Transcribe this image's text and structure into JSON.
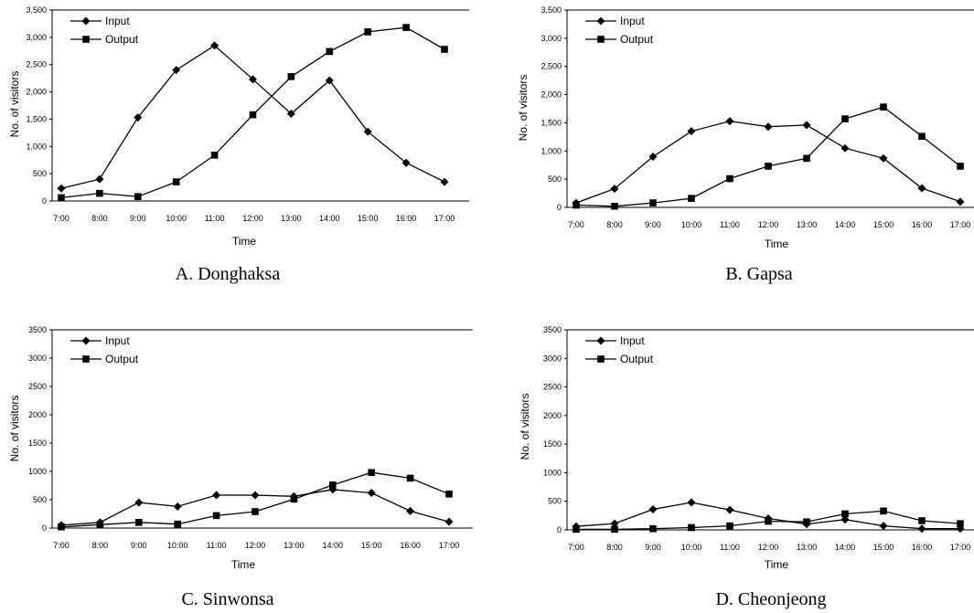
{
  "chart_data": [
    {
      "type": "line",
      "caption": "A. Donghaksa",
      "xlabel": "Time",
      "ylabel": "No. of visitors",
      "categories": [
        "7:00",
        "8:00",
        "9:00",
        "10:00",
        "11:00",
        "12:00",
        "13:00",
        "14:00",
        "15:00",
        "16:00",
        "17:00"
      ],
      "ylim": [
        0,
        3500
      ],
      "yticks": [
        "0",
        "500",
        "1,000",
        "1,500",
        "2,000",
        "2,500",
        "3,000",
        "3,500"
      ],
      "legend_position": "top-left",
      "series": [
        {
          "name": "Input",
          "marker": "diamond",
          "values": [
            230,
            400,
            1530,
            2400,
            2850,
            2230,
            1600,
            2210,
            1270,
            700,
            350
          ]
        },
        {
          "name": "Output",
          "marker": "square",
          "values": [
            60,
            140,
            80,
            350,
            840,
            1580,
            2280,
            2740,
            3100,
            3180,
            2780
          ]
        }
      ]
    },
    {
      "type": "line",
      "caption": "B. Gapsa",
      "xlabel": "Time",
      "ylabel": "No. of visitors",
      "categories": [
        "7:00",
        "8:00",
        "9:00",
        "10:00",
        "11:00",
        "12:00",
        "13:00",
        "14:00",
        "15:00",
        "16:00",
        "17:00"
      ],
      "ylim": [
        0,
        3500
      ],
      "yticks": [
        "0",
        "500",
        "1,000",
        "1,500",
        "2,000",
        "2,500",
        "3,000",
        "3,500"
      ],
      "legend_position": "top-left",
      "series": [
        {
          "name": "Input",
          "marker": "diamond",
          "values": [
            80,
            330,
            900,
            1350,
            1530,
            1430,
            1460,
            1050,
            870,
            340,
            100
          ]
        },
        {
          "name": "Output",
          "marker": "square",
          "values": [
            40,
            20,
            80,
            160,
            510,
            730,
            870,
            1570,
            1780,
            1260,
            730
          ]
        }
      ]
    },
    {
      "type": "line",
      "caption": "C. Sinwonsa",
      "xlabel": "Time",
      "ylabel": "No. of visitors",
      "categories": [
        "7:00",
        "8:00",
        "9:00",
        "10:00",
        "11:00",
        "12:00",
        "13:00",
        "14:00",
        "15:00",
        "16:00",
        "17:00"
      ],
      "ylim": [
        0,
        3500
      ],
      "yticks": [
        "0",
        "500",
        "1000",
        "1500",
        "2000",
        "2500",
        "3000",
        "3500"
      ],
      "legend_position": "top-left",
      "series": [
        {
          "name": "Input",
          "marker": "diamond",
          "values": [
            50,
            100,
            450,
            380,
            580,
            580,
            560,
            680,
            620,
            300,
            110
          ]
        },
        {
          "name": "Output",
          "marker": "square",
          "values": [
            20,
            60,
            100,
            70,
            220,
            290,
            510,
            760,
            980,
            880,
            600
          ]
        }
      ]
    },
    {
      "type": "line",
      "caption": "D. Cheonjeong",
      "xlabel": "Time",
      "ylabel": "No. of visitors",
      "categories": [
        "7:00",
        "8:00",
        "9:00",
        "10:00",
        "11:00",
        "12:00",
        "13:00",
        "14:00",
        "15:00",
        "16:00",
        "17:00"
      ],
      "ylim": [
        0,
        3500
      ],
      "yticks": [
        "0",
        "500",
        "1000",
        "1500",
        "2000",
        "2500",
        "3000",
        "3500"
      ],
      "legend_position": "top-left",
      "series": [
        {
          "name": "Input",
          "marker": "diamond",
          "values": [
            60,
            110,
            360,
            480,
            350,
            200,
            100,
            180,
            70,
            20,
            20
          ]
        },
        {
          "name": "Output",
          "marker": "square",
          "values": [
            10,
            10,
            20,
            40,
            70,
            150,
            140,
            280,
            330,
            160,
            110
          ]
        }
      ]
    }
  ]
}
